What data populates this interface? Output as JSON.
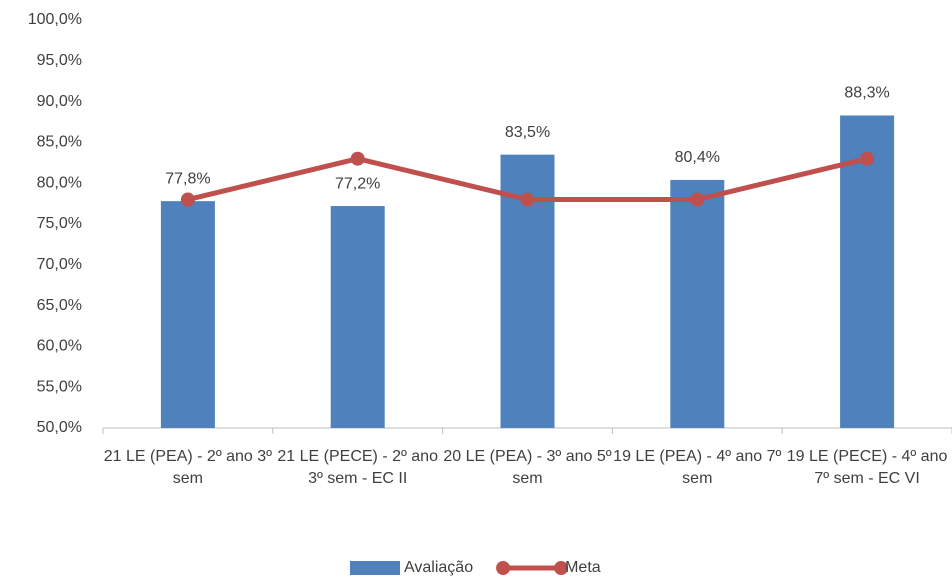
{
  "chart_data": {
    "type": "bar_line",
    "categories": [
      "21 LE (PEA) - 2º ano 3º sem",
      "21 LE (PECE) - 2º ano 3º sem - EC II",
      "20 LE (PEA) - 3º ano 5º sem",
      "19 LE (PEA) - 4º ano 7º sem",
      "19 LE (PECE) - 4º ano 7º sem - EC VI"
    ],
    "series": [
      {
        "name": "Avaliação",
        "type": "bar",
        "color": "#4f81bd",
        "values": [
          77.8,
          77.2,
          83.5,
          80.4,
          88.3
        ],
        "value_labels": [
          "77,8%",
          "77,2%",
          "83,5%",
          "80,4%",
          "88,3%"
        ]
      },
      {
        "name": "Meta",
        "type": "line",
        "color": "#c0504d",
        "values": [
          78,
          83,
          78,
          78,
          83
        ]
      }
    ],
    "ylim": [
      50,
      100
    ],
    "yticks": [
      {
        "value": 50,
        "label": "50,0%"
      },
      {
        "value": 55,
        "label": "55,0%"
      },
      {
        "value": 60,
        "label": "60,0%"
      },
      {
        "value": 65,
        "label": "65,0%"
      },
      {
        "value": 70,
        "label": "70,0%"
      },
      {
        "value": 75,
        "label": "75,0%"
      },
      {
        "value": 80,
        "label": "80,0%"
      },
      {
        "value": 85,
        "label": "85,0%"
      },
      {
        "value": 90,
        "label": "90,0%"
      },
      {
        "value": 95,
        "label": "95,0%"
      },
      {
        "value": 100,
        "label": "100,0%"
      }
    ],
    "grid": false,
    "legend": "bottom"
  }
}
